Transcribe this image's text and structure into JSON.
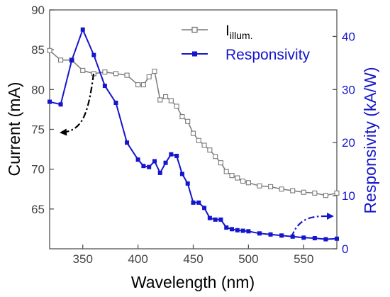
{
  "chart_data": {
    "type": "line",
    "xlabel": "Wavelength (nm)",
    "ylabel_left": "Current (mA)",
    "ylabel_right": "Responsivity (kA/W)",
    "xlim": [
      320,
      580
    ],
    "ylim_left": [
      60,
      90
    ],
    "ylim_right": [
      0,
      45
    ],
    "x_ticks": [
      350,
      400,
      450,
      500,
      550
    ],
    "y_left_ticks": [
      65,
      70,
      75,
      80,
      85,
      90
    ],
    "y_right_ticks": [
      0,
      10,
      20,
      30,
      40
    ],
    "grid": false,
    "legend_position": "top-right",
    "colors": {
      "current": "#7a7a7a",
      "responsivity": "#1515cc",
      "axis": "#555555"
    },
    "series": [
      {
        "name": "I",
        "name_subscript": "illum.",
        "axis": "left",
        "marker": "open-square",
        "points": [
          [
            320,
            84.9
          ],
          [
            330,
            83.7
          ],
          [
            340,
            83.7
          ],
          [
            350,
            82.4
          ],
          [
            360,
            82.0
          ],
          [
            370,
            82.2
          ],
          [
            380,
            82.0
          ],
          [
            390,
            81.8
          ],
          [
            400,
            80.6
          ],
          [
            405,
            80.6
          ],
          [
            410,
            81.6
          ],
          [
            415,
            82.3
          ],
          [
            420,
            78.7
          ],
          [
            425,
            79.1
          ],
          [
            430,
            78.6
          ],
          [
            435,
            77.9
          ],
          [
            440,
            76.6
          ],
          [
            445,
            76.0
          ],
          [
            450,
            74.5
          ],
          [
            455,
            73.6
          ],
          [
            460,
            73.0
          ],
          [
            465,
            72.4
          ],
          [
            470,
            71.6
          ],
          [
            475,
            70.8
          ],
          [
            480,
            69.7
          ],
          [
            485,
            69.2
          ],
          [
            490,
            68.9
          ],
          [
            495,
            68.5
          ],
          [
            500,
            68.3
          ],
          [
            510,
            67.9
          ],
          [
            520,
            67.8
          ],
          [
            530,
            67.5
          ],
          [
            540,
            67.3
          ],
          [
            550,
            67.1
          ],
          [
            560,
            67.0
          ],
          [
            570,
            66.7
          ],
          [
            580,
            67.0
          ]
        ]
      },
      {
        "name": "Responsivity",
        "axis": "right",
        "marker": "filled-square",
        "points": [
          [
            320,
            27.7
          ],
          [
            330,
            27.2
          ],
          [
            340,
            35.5
          ],
          [
            350,
            41.3
          ],
          [
            360,
            36.5
          ],
          [
            370,
            30.7
          ],
          [
            380,
            27.5
          ],
          [
            390,
            20.0
          ],
          [
            400,
            16.8
          ],
          [
            405,
            15.6
          ],
          [
            410,
            15.4
          ],
          [
            415,
            16.5
          ],
          [
            420,
            14.3
          ],
          [
            425,
            16.2
          ],
          [
            430,
            17.8
          ],
          [
            435,
            17.5
          ],
          [
            440,
            14.1
          ],
          [
            445,
            12.3
          ],
          [
            450,
            8.7
          ],
          [
            455,
            8.7
          ],
          [
            460,
            7.7
          ],
          [
            465,
            5.8
          ],
          [
            470,
            5.5
          ],
          [
            475,
            5.5
          ],
          [
            480,
            4.0
          ],
          [
            485,
            3.7
          ],
          [
            490,
            3.5
          ],
          [
            495,
            3.4
          ],
          [
            500,
            3.3
          ],
          [
            510,
            2.9
          ],
          [
            520,
            2.7
          ],
          [
            530,
            2.5
          ],
          [
            540,
            2.3
          ],
          [
            550,
            2.1
          ],
          [
            560,
            2.0
          ],
          [
            570,
            1.8
          ],
          [
            580,
            1.9
          ]
        ]
      }
    ]
  }
}
